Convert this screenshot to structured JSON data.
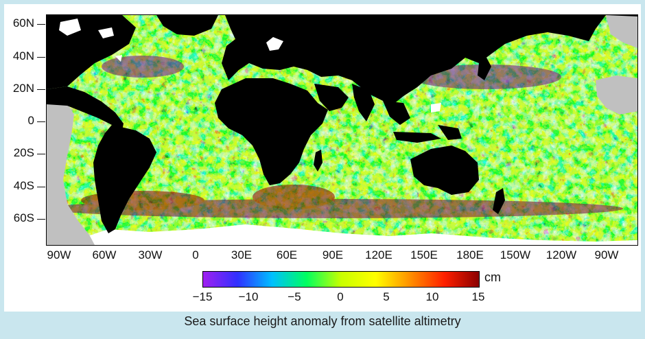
{
  "figure": {
    "caption": "Sea surface height anomaly from satellite altimetry",
    "latitude_labels": [
      "60N",
      "40N",
      "20N",
      "0",
      "20S",
      "40S",
      "60S"
    ],
    "longitude_labels": [
      "90W",
      "60W",
      "30W",
      "0",
      "30E",
      "60E",
      "90E",
      "120E",
      "150E",
      "180E",
      "150W",
      "120W",
      "90W"
    ],
    "colorbar": {
      "unit": "cm",
      "tick_labels": [
        "−15",
        "−10",
        "−5",
        "0",
        "5",
        "10",
        "15"
      ],
      "range": [
        -15,
        15
      ],
      "colors": [
        "#a020f0",
        "#3030ff",
        "#00bfff",
        "#00ff60",
        "#c8ff00",
        "#ffff00",
        "#ff9000",
        "#ff2000",
        "#8b0000"
      ]
    },
    "colors": {
      "land": "#000000",
      "ice": "#ffffff",
      "no_data": "#c0c0c0",
      "background": "#c9e6ee"
    }
  }
}
